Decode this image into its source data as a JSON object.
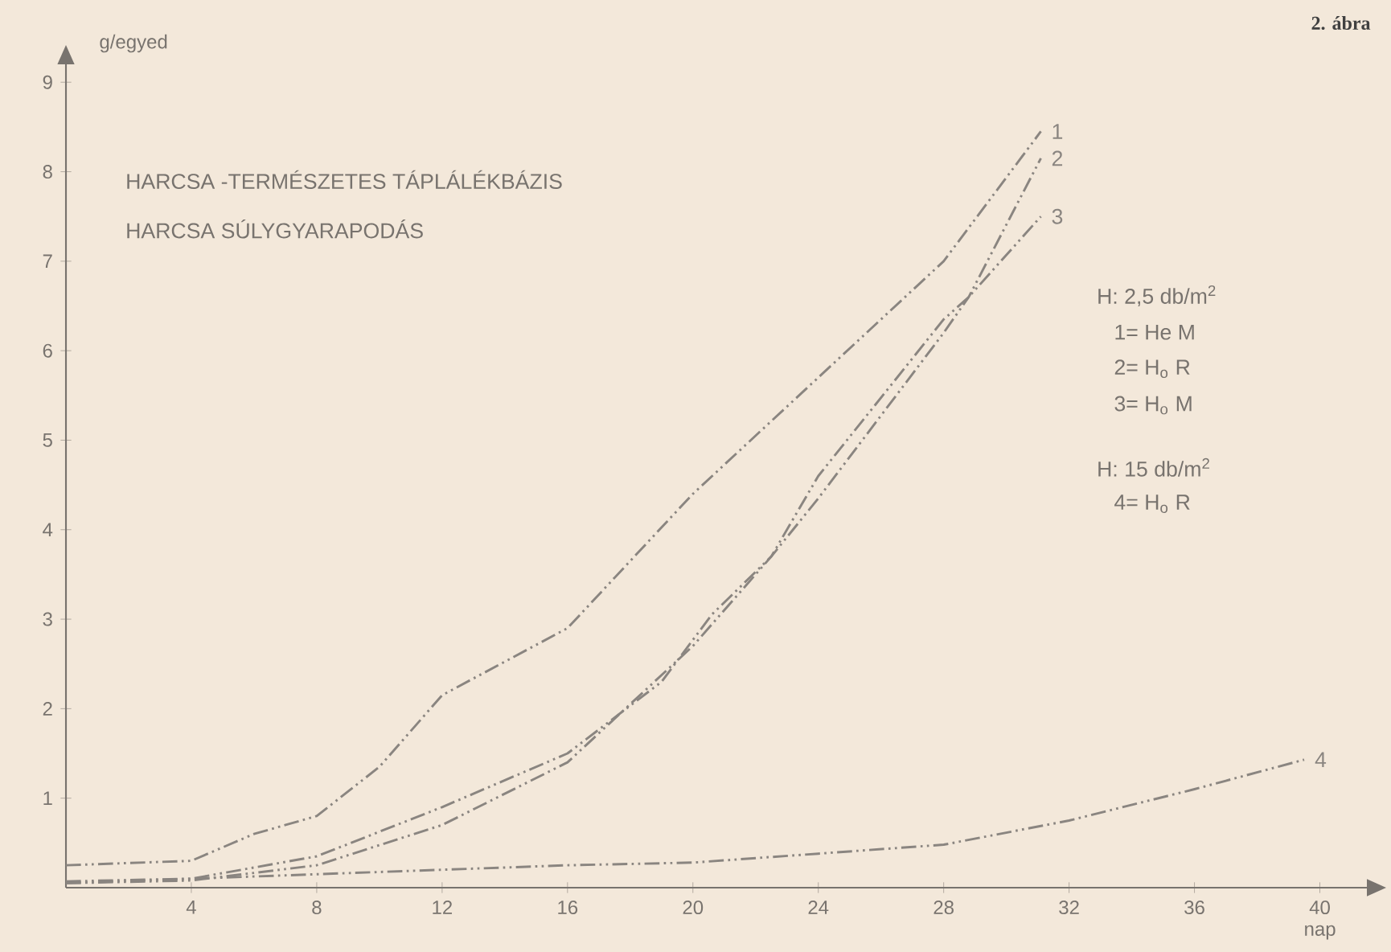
{
  "chart_data": {
    "type": "line",
    "title": "HARCSA -TERMÉSZETES TÁPLÁLÉKBÁZIS",
    "subtitle": "HARCSA SÚLYGYARAPODÁS",
    "xlabel": "nap",
    "ylabel": "g/egyed",
    "xlim": [
      0,
      41.5
    ],
    "ylim": [
      0,
      9.2
    ],
    "xticks": [
      4,
      8,
      12,
      16,
      20,
      24,
      28,
      32,
      36,
      40
    ],
    "yticks": [
      1,
      2,
      3,
      4,
      5,
      6,
      7,
      8,
      9
    ],
    "grid": false,
    "legend": false,
    "marker": "none",
    "line_style": "dashed",
    "series": [
      {
        "name": "1",
        "color": "#8a8580",
        "x": [
          0,
          4,
          6,
          8,
          10,
          12,
          16,
          20,
          24,
          28,
          31.1
        ],
        "values": [
          0.25,
          0.3,
          0.6,
          0.8,
          1.35,
          2.15,
          2.9,
          4.4,
          5.7,
          7.0,
          8.45
        ]
      },
      {
        "name": "2",
        "color": "#8a8580",
        "x": [
          0,
          4,
          8,
          12,
          16,
          19,
          20.6,
          22.5,
          24,
          28,
          28.8,
          31.1
        ],
        "values": [
          0.07,
          0.1,
          0.35,
          0.9,
          1.5,
          2.3,
          3.05,
          3.7,
          4.35,
          6.2,
          6.6,
          8.15
        ]
      },
      {
        "name": "3",
        "color": "#8a8580",
        "x": [
          0,
          4,
          8,
          12,
          16,
          20,
          22.5,
          24,
          28,
          28.8,
          31.1
        ],
        "values": [
          0.05,
          0.08,
          0.25,
          0.7,
          1.4,
          2.7,
          3.7,
          4.6,
          6.35,
          6.6,
          7.5
        ]
      },
      {
        "name": "4",
        "color": "#8a8580",
        "x": [
          0,
          4,
          8,
          12,
          16,
          20,
          24,
          28,
          32,
          36,
          39.5
        ],
        "values": [
          0.05,
          0.1,
          0.15,
          0.2,
          0.25,
          0.28,
          0.38,
          0.48,
          0.75,
          1.1,
          1.43
        ]
      }
    ],
    "annotations": [
      "2. ábra",
      "H: 2,5 db/m$^{2}$",
      "1= He M",
      "2= H$_{o}$ R",
      "3= H$_{o}$ M",
      "H: 15 db/m$^{2}$",
      "4= H$_{o}$ R"
    ]
  }
}
